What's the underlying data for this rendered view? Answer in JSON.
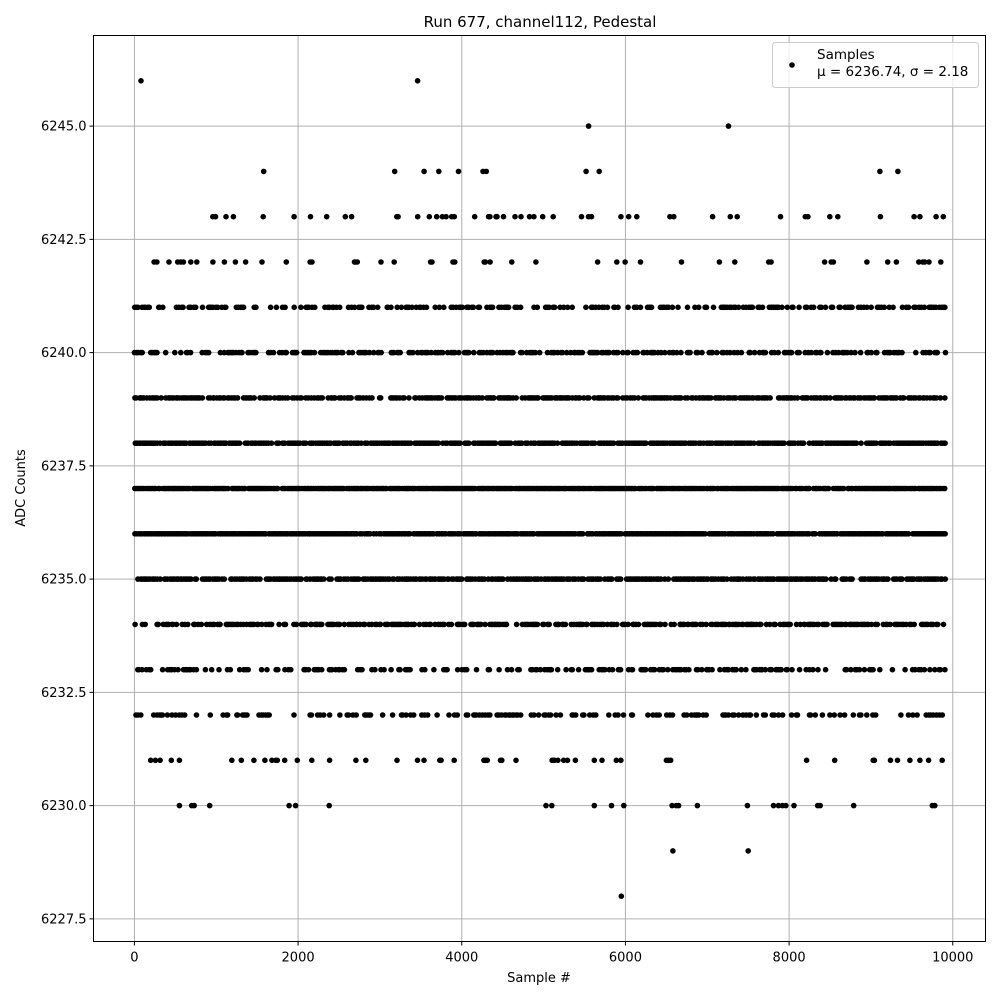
{
  "chart_data": {
    "type": "scatter",
    "title": "Run 677, channel112, Pedestal",
    "xlabel": "Sample #",
    "ylabel": "ADC Counts",
    "xlim": [
      -500,
      10400
    ],
    "ylim": [
      6227,
      6247
    ],
    "xticks": [
      0,
      2000,
      4000,
      6000,
      8000,
      10000
    ],
    "yticks": [
      "6227.5",
      "6230.0",
      "6232.5",
      "6235.0",
      "6237.5",
      "6240.0",
      "6242.5",
      "6245.0"
    ],
    "grid": true,
    "legend_position": "top-right",
    "marker_color": "#000000",
    "series": [
      {
        "name": "Samples",
        "stats_label": "μ = 6236.74, σ = 2.18",
        "levels": [
          {
            "y": 6236,
            "density": 0.92
          },
          {
            "y": 6237,
            "density": 0.9
          },
          {
            "y": 6238,
            "density": 0.8
          },
          {
            "y": 6235,
            "density": 0.72
          },
          {
            "y": 6239,
            "density": 0.66
          },
          {
            "y": 6234,
            "density": 0.58
          },
          {
            "y": 6240,
            "density": 0.46
          },
          {
            "y": 6241,
            "density": 0.38
          },
          {
            "y": 6233,
            "density": 0.34
          },
          {
            "y": 6232,
            "density": 0.28
          },
          {
            "y": 6242,
            "density": 0.1
          },
          {
            "y": 6243,
            "density": 0.1
          },
          {
            "y": 6231,
            "density": 0.07
          }
        ],
        "points": [
          {
            "x": 80,
            "y": 6246
          },
          {
            "x": 3460,
            "y": 6246
          },
          {
            "x": 5550,
            "y": 6245
          },
          {
            "x": 7260,
            "y": 6245
          },
          {
            "x": 1580,
            "y": 6244
          },
          {
            "x": 3180,
            "y": 6244
          },
          {
            "x": 3540,
            "y": 6244
          },
          {
            "x": 3720,
            "y": 6244
          },
          {
            "x": 3960,
            "y": 6244
          },
          {
            "x": 4260,
            "y": 6244
          },
          {
            "x": 4300,
            "y": 6244
          },
          {
            "x": 5520,
            "y": 6244
          },
          {
            "x": 5680,
            "y": 6244
          },
          {
            "x": 9110,
            "y": 6244
          },
          {
            "x": 9330,
            "y": 6244
          },
          {
            "x": 550,
            "y": 6230
          },
          {
            "x": 700,
            "y": 6230
          },
          {
            "x": 730,
            "y": 6230
          },
          {
            "x": 920,
            "y": 6230
          },
          {
            "x": 1890,
            "y": 6230
          },
          {
            "x": 1970,
            "y": 6230
          },
          {
            "x": 2380,
            "y": 6230
          },
          {
            "x": 5030,
            "y": 6230
          },
          {
            "x": 5100,
            "y": 6230
          },
          {
            "x": 5620,
            "y": 6230
          },
          {
            "x": 5830,
            "y": 6230
          },
          {
            "x": 5980,
            "y": 6230
          },
          {
            "x": 6570,
            "y": 6230
          },
          {
            "x": 6620,
            "y": 6230
          },
          {
            "x": 6650,
            "y": 6230
          },
          {
            "x": 6880,
            "y": 6230
          },
          {
            "x": 7490,
            "y": 6230
          },
          {
            "x": 7810,
            "y": 6230
          },
          {
            "x": 7870,
            "y": 6230
          },
          {
            "x": 7920,
            "y": 6230
          },
          {
            "x": 7960,
            "y": 6230
          },
          {
            "x": 8060,
            "y": 6230
          },
          {
            "x": 8350,
            "y": 6230
          },
          {
            "x": 8380,
            "y": 6230
          },
          {
            "x": 8790,
            "y": 6230
          },
          {
            "x": 9750,
            "y": 6230
          },
          {
            "x": 9780,
            "y": 6230
          },
          {
            "x": 6580,
            "y": 6229
          },
          {
            "x": 7500,
            "y": 6229
          },
          {
            "x": 5950,
            "y": 6228
          }
        ]
      }
    ]
  }
}
